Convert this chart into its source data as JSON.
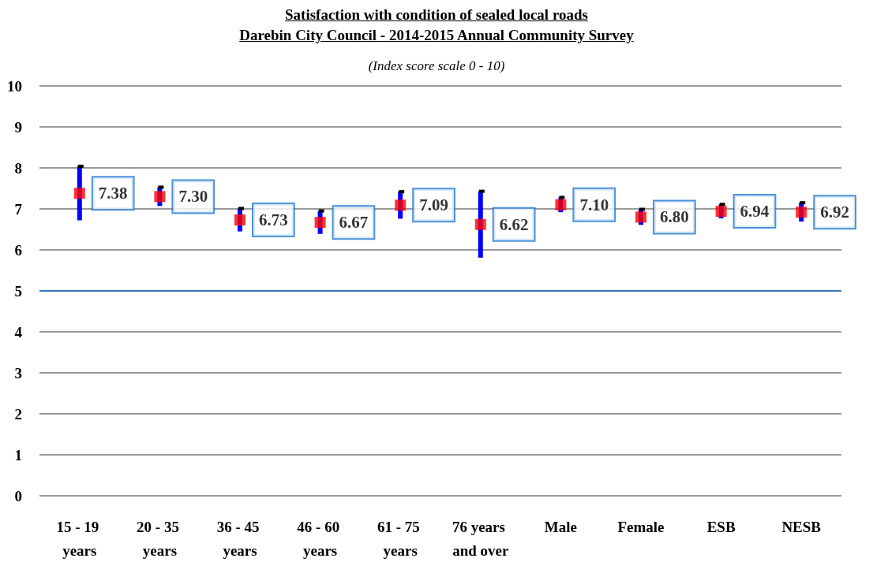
{
  "chart_data": {
    "type": "scatter",
    "title": "Satisfaction with condition of sealed local roads\nDarebin City Council - 2014-2015 Annual Community Survey",
    "subtitle": "(Index score scale 0 - 10)",
    "categories": [
      "15 - 19 years",
      "20 - 35 years",
      "36 - 45 years",
      "46 - 60 years",
      "61 - 75 years",
      "76 years and over",
      "Male",
      "Female",
      "ESB",
      "NESB"
    ],
    "values": [
      7.38,
      7.3,
      6.73,
      6.67,
      7.09,
      6.62,
      7.1,
      6.8,
      6.94,
      6.92
    ],
    "errors": [
      0.66,
      0.23,
      0.28,
      0.28,
      0.33,
      0.81,
      0.18,
      0.19,
      0.17,
      0.23
    ],
    "color": "#ff0000",
    "marker": "square",
    "value_labels": [
      "7.38",
      "7.30",
      "6.73",
      "6.67",
      "7.09",
      "6.62",
      "7.10",
      "6.80",
      "6.94",
      "6.92"
    ],
    "ylim": [
      0,
      10
    ],
    "yticks": [
      0,
      1,
      2,
      3,
      4,
      5,
      6,
      7,
      8,
      9,
      10
    ],
    "grid": "y",
    "ref_lines": [
      {
        "axis": "y",
        "value": 5,
        "color": "#2e75b6"
      }
    ]
  }
}
